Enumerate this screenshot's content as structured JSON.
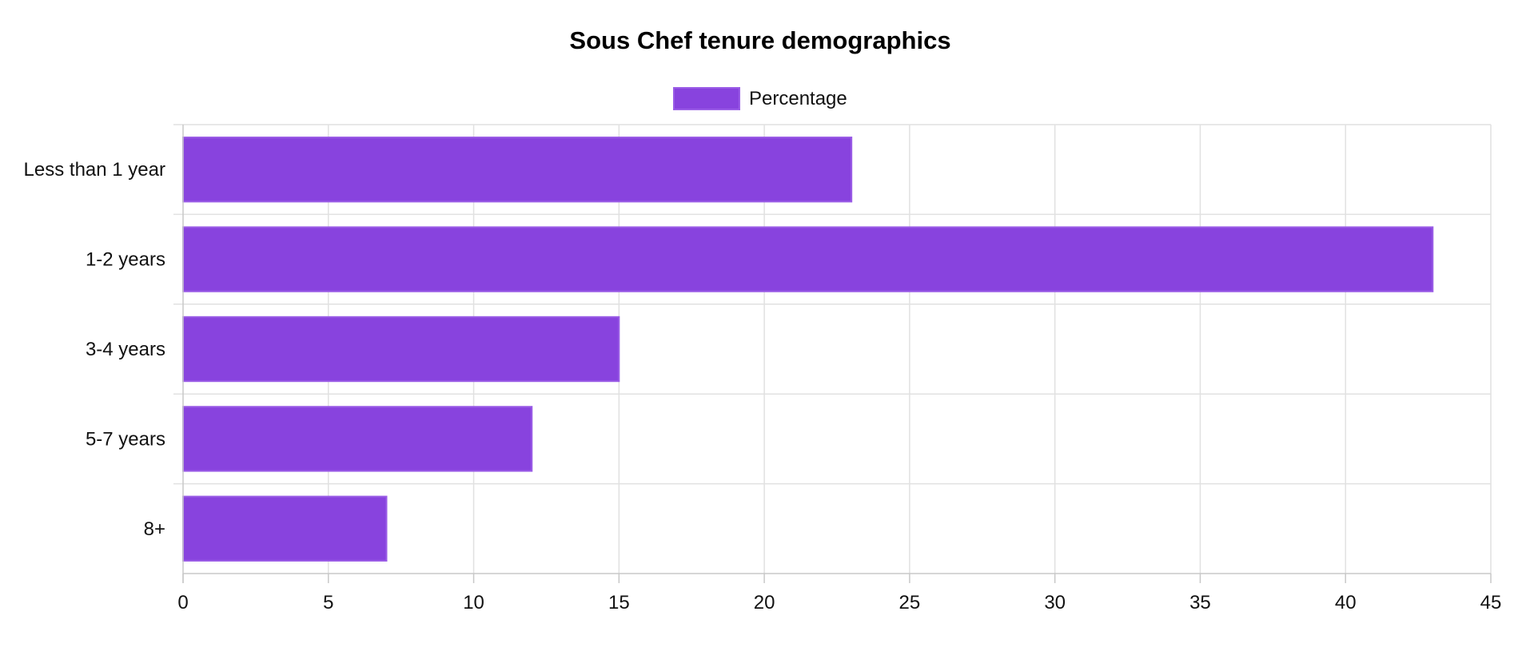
{
  "chart_data": {
    "type": "bar",
    "orientation": "horizontal",
    "title": "Sous Chef tenure demographics",
    "categories": [
      "Less than 1 year",
      "1-2 years",
      "3-4 years",
      "5-7 years",
      "8+"
    ],
    "series": [
      {
        "name": "Percentage",
        "values": [
          23,
          43,
          15,
          12,
          7
        ],
        "color": "#8843DE"
      }
    ],
    "xlim": [
      0,
      45
    ],
    "x_ticks": [
      0,
      5,
      10,
      15,
      20,
      25,
      30,
      35,
      40,
      45
    ],
    "grid": true,
    "legend_position": "top-center"
  }
}
